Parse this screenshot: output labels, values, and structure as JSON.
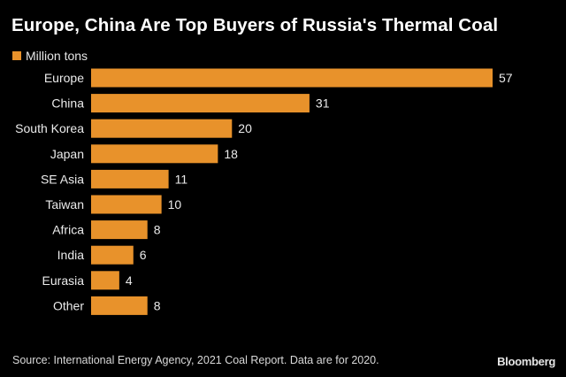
{
  "chart_data": {
    "type": "bar",
    "orientation": "horizontal",
    "title": "Europe, China Are Top Buyers of Russia's Thermal Coal",
    "legend": "Million tons",
    "categories": [
      "Europe",
      "China",
      "South Korea",
      "Japan",
      "SE Asia",
      "Taiwan",
      "Africa",
      "India",
      "Eurasia",
      "Other"
    ],
    "values": [
      57,
      31,
      20,
      18,
      11,
      10,
      8,
      6,
      4,
      8
    ],
    "xlim": [
      0,
      57
    ],
    "bar_color": "#e8922b"
  },
  "footer": {
    "source": "Source: International Energy Agency, 2021 Coal Report. Data are for 2020.",
    "brand": "Bloomberg"
  }
}
